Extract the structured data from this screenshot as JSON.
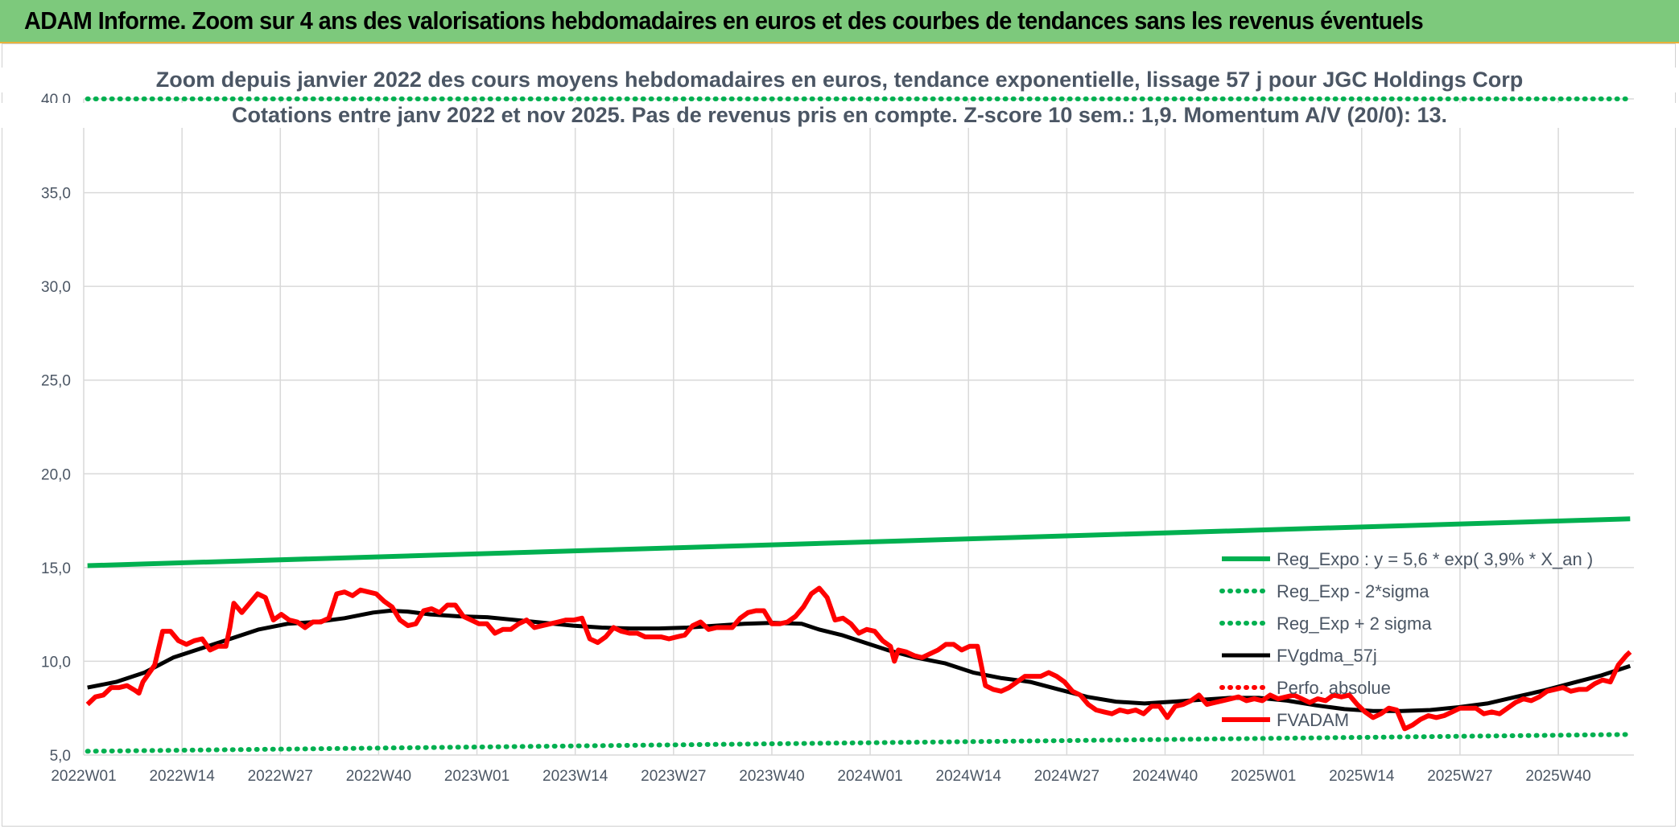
{
  "banner": {
    "title": "ADAM Informe. Zoom sur 4 ans des valorisations hebdomadaires en euros et des courbes de tendances sans les revenus éventuels"
  },
  "chart_data": {
    "type": "line",
    "title": "Zoom depuis janvier 2022 des cours moyens hebdomadaires en euros, tendance exponentielle, lissage 57 j pour JGC Holdings Corp",
    "subtitle": "Cotations entre janv 2022 et nov 2025. Pas de revenus pris en compte. Z-score 10 sem.: 1,9. Momentum A/V (20/0): 13.",
    "xlabel": "",
    "ylabel": "",
    "ylim": [
      5,
      40
    ],
    "y_ticks": [
      "5,0",
      "10,0",
      "15,0",
      "20,0",
      "25,0",
      "30,0",
      "35,0",
      "40,0"
    ],
    "x_tick_labels": [
      "2022W01",
      "2022W14",
      "2022W27",
      "2022W40",
      "2023W01",
      "2023W14",
      "2023W27",
      "2023W40",
      "2024W01",
      "2024W14",
      "2024W27",
      "2024W40",
      "2025W01",
      "2025W14",
      "2025W27",
      "2025W40"
    ],
    "n_weeks": 205,
    "grid": true,
    "legend_position": "bottom-right",
    "series": [
      {
        "name": "Reg_Expo : y = 5,6 * exp( 3,9% *  X_an )",
        "style": "solid",
        "color": "#00b050",
        "values": [
          [
            0,
            15.1
          ],
          [
            204,
            17.6
          ]
        ]
      },
      {
        "name": "Reg_Exp - 2*sigma",
        "style": "dotted",
        "color": "#00b050",
        "values": [
          [
            0,
            5.2
          ],
          [
            204,
            6.1
          ]
        ]
      },
      {
        "name": "Reg_Exp + 2 sigma",
        "style": "dotted",
        "color": "#00b050",
        "values": [
          [
            0,
            40.0
          ],
          [
            204,
            40.0
          ]
        ]
      },
      {
        "name": "FVgdma_57j",
        "style": "solid",
        "color": "#000000",
        "values": [
          [
            0,
            8.6
          ],
          [
            5,
            8.9
          ],
          [
            10,
            9.4
          ],
          [
            15,
            10.2
          ],
          [
            20,
            10.7
          ],
          [
            25,
            11.2
          ],
          [
            30,
            11.7
          ],
          [
            35,
            12.0
          ],
          [
            40,
            12.1
          ],
          [
            45,
            12.3
          ],
          [
            50,
            12.6
          ],
          [
            53,
            12.7
          ],
          [
            56,
            12.65
          ],
          [
            60,
            12.5
          ],
          [
            65,
            12.4
          ],
          [
            70,
            12.35
          ],
          [
            75,
            12.2
          ],
          [
            80,
            12.05
          ],
          [
            85,
            11.9
          ],
          [
            90,
            11.8
          ],
          [
            95,
            11.75
          ],
          [
            100,
            11.75
          ],
          [
            105,
            11.8
          ],
          [
            110,
            11.9
          ],
          [
            115,
            12.0
          ],
          [
            120,
            12.05
          ],
          [
            125,
            12.0
          ],
          [
            128,
            11.7
          ],
          [
            132,
            11.4
          ],
          [
            136,
            11.0
          ],
          [
            140,
            10.6
          ],
          [
            145,
            10.2
          ],
          [
            150,
            9.9
          ],
          [
            155,
            9.4
          ],
          [
            160,
            9.1
          ],
          [
            165,
            8.9
          ],
          [
            170,
            8.5
          ],
          [
            175,
            8.1
          ],
          [
            180,
            7.85
          ],
          [
            185,
            7.75
          ],
          [
            190,
            7.85
          ],
          [
            195,
            7.95
          ],
          [
            200,
            8.05
          ],
          [
            205,
            8.05
          ],
          [
            210,
            7.9
          ],
          [
            215,
            7.65
          ],
          [
            220,
            7.45
          ],
          [
            225,
            7.35
          ],
          [
            230,
            7.35
          ],
          [
            235,
            7.4
          ],
          [
            240,
            7.55
          ],
          [
            245,
            7.75
          ],
          [
            250,
            8.1
          ],
          [
            255,
            8.45
          ],
          [
            260,
            8.85
          ],
          [
            265,
            9.25
          ],
          [
            270,
            9.75
          ]
        ]
      },
      {
        "name": "Perfo. absolue",
        "style": "dotted",
        "color": "#ff0000",
        "values": []
      },
      {
        "name": "FVADAM",
        "style": "solid",
        "color": "#ff0000",
        "values": [
          [
            0,
            7.7
          ],
          [
            2,
            8.1
          ],
          [
            4,
            8.2
          ],
          [
            6,
            8.6
          ],
          [
            8,
            8.6
          ],
          [
            10,
            8.7
          ],
          [
            12,
            8.45
          ],
          [
            13,
            8.3
          ],
          [
            14,
            8.9
          ],
          [
            16,
            9.5
          ],
          [
            17,
            9.8
          ],
          [
            19,
            11.6
          ],
          [
            21,
            11.6
          ],
          [
            23,
            11.1
          ],
          [
            25,
            10.9
          ],
          [
            27,
            11.1
          ],
          [
            29,
            11.2
          ],
          [
            31,
            10.6
          ],
          [
            33,
            10.8
          ],
          [
            35,
            10.8
          ],
          [
            36,
            11.8
          ],
          [
            37,
            13.1
          ],
          [
            39,
            12.6
          ],
          [
            41,
            13.1
          ],
          [
            43,
            13.6
          ],
          [
            45,
            13.4
          ],
          [
            47,
            12.2
          ],
          [
            49,
            12.5
          ],
          [
            51,
            12.2
          ],
          [
            53,
            12.1
          ],
          [
            55,
            11.8
          ],
          [
            57,
            12.1
          ],
          [
            59,
            12.1
          ],
          [
            61,
            12.3
          ],
          [
            63,
            13.6
          ],
          [
            65,
            13.7
          ],
          [
            67,
            13.5
          ],
          [
            69,
            13.8
          ],
          [
            71,
            13.7
          ],
          [
            73,
            13.6
          ],
          [
            75,
            13.2
          ],
          [
            77,
            12.9
          ],
          [
            79,
            12.2
          ],
          [
            81,
            11.9
          ],
          [
            83,
            12.0
          ],
          [
            85,
            12.7
          ],
          [
            87,
            12.8
          ],
          [
            89,
            12.6
          ],
          [
            91,
            13.0
          ],
          [
            93,
            13.0
          ],
          [
            95,
            12.4
          ],
          [
            97,
            12.2
          ],
          [
            99,
            12.0
          ],
          [
            101,
            12.0
          ],
          [
            103,
            11.5
          ],
          [
            105,
            11.7
          ],
          [
            107,
            11.7
          ],
          [
            109,
            12.0
          ],
          [
            111,
            12.2
          ],
          [
            113,
            11.8
          ],
          [
            115,
            11.9
          ],
          [
            117,
            12.0
          ],
          [
            119,
            12.1
          ],
          [
            121,
            12.2
          ],
          [
            123,
            12.2
          ],
          [
            125,
            12.3
          ],
          [
            127,
            11.2
          ],
          [
            129,
            11.0
          ],
          [
            131,
            11.3
          ],
          [
            133,
            11.8
          ],
          [
            135,
            11.6
          ],
          [
            137,
            11.5
          ],
          [
            139,
            11.5
          ],
          [
            141,
            11.3
          ],
          [
            143,
            11.3
          ],
          [
            145,
            11.3
          ],
          [
            147,
            11.2
          ],
          [
            149,
            11.3
          ],
          [
            151,
            11.4
          ],
          [
            153,
            11.9
          ],
          [
            155,
            12.1
          ],
          [
            157,
            11.7
          ],
          [
            159,
            11.8
          ],
          [
            161,
            11.8
          ],
          [
            163,
            11.8
          ],
          [
            165,
            12.3
          ],
          [
            167,
            12.6
          ],
          [
            169,
            12.7
          ],
          [
            171,
            12.7
          ],
          [
            173,
            12.0
          ],
          [
            175,
            12.0
          ],
          [
            177,
            12.1
          ],
          [
            179,
            12.4
          ],
          [
            181,
            12.9
          ],
          [
            183,
            13.6
          ],
          [
            185,
            13.9
          ],
          [
            187,
            13.4
          ],
          [
            189,
            12.2
          ],
          [
            191,
            12.3
          ],
          [
            193,
            12.0
          ],
          [
            195,
            11.5
          ],
          [
            197,
            11.7
          ],
          [
            199,
            11.6
          ],
          [
            201,
            11.1
          ],
          [
            203,
            10.8
          ],
          [
            204,
            10.0
          ]
        ]
      }
    ],
    "notes": "FVADAM and FVgdma_57j curves continue over the full 2022W01–2025W47 range; sampled by week index."
  }
}
